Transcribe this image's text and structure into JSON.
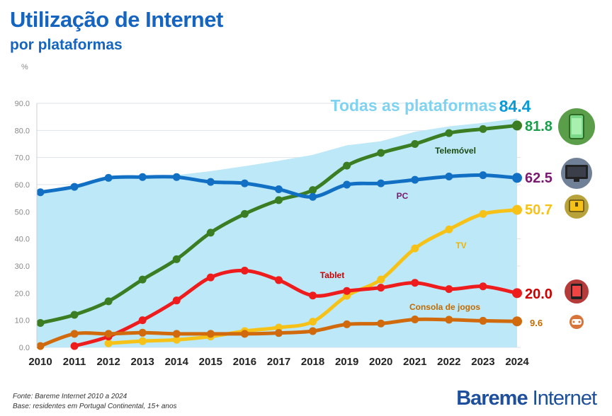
{
  "title": "Utilização de Internet",
  "subtitle": "por plataformas",
  "footer": {
    "source": "Fonte: Bareme Internet 2010 a 2024",
    "base": "Base: residentes em Portugal Continental, 15+ anos"
  },
  "brand": {
    "part1": "Bareme",
    "part2": "Internet"
  },
  "chart_data": {
    "type": "line",
    "title": "Utilização de Internet por plataformas",
    "ylabel": "%",
    "ylim": [
      0,
      90
    ],
    "yticks": [
      "0.0",
      "10.0",
      "20.0",
      "30.0",
      "40.0",
      "50.0",
      "60.0",
      "70.0",
      "80.0",
      "90.0"
    ],
    "x": [
      "2010",
      "2011",
      "2012",
      "2013",
      "2014",
      "2015",
      "2016",
      "2017",
      "2018",
      "2019",
      "2020",
      "2021",
      "2022",
      "2023",
      "2024"
    ],
    "area": {
      "name": "Todas as plataformas",
      "final_label": "84.4",
      "color": "#bde8f7",
      "label_color": "#7fd3f0",
      "values": [
        57.2,
        59.2,
        62.5,
        62.8,
        63.5,
        65.0,
        66.8,
        68.8,
        71.0,
        74.5,
        76.0,
        79.5,
        81.5,
        82.8,
        84.4
      ]
    },
    "series": [
      {
        "name": "Telemóvel",
        "final_label": "81.8",
        "color": "#3a7d22",
        "label_color": "#1a9e4a",
        "values": [
          9.0,
          12.0,
          17.0,
          25.0,
          32.5,
          42.3,
          49.2,
          54.3,
          58.0,
          67.0,
          71.7,
          75.0,
          79.0,
          80.5,
          81.8
        ]
      },
      {
        "name": "PC",
        "final_label": "62.5",
        "color": "#1270c4",
        "label_color": "#7a1a6e",
        "values": [
          57.2,
          59.2,
          62.5,
          62.8,
          62.8,
          61.0,
          60.5,
          58.3,
          55.5,
          60.0,
          60.5,
          61.8,
          63.0,
          63.5,
          62.5
        ]
      },
      {
        "name": "TV",
        "final_label": "50.7",
        "color": "#f6c218",
        "label_color": "#f6c218",
        "values": [
          null,
          null,
          1.5,
          2.3,
          2.8,
          4.0,
          6.0,
          7.3,
          9.5,
          19.0,
          25.0,
          36.5,
          43.5,
          49.2,
          50.7
        ]
      },
      {
        "name": "Tablet",
        "final_label": "20.0",
        "color": "#ee1c1c",
        "label_color": "#cc0000",
        "values": [
          null,
          0.5,
          4.0,
          10.0,
          17.3,
          25.8,
          28.3,
          24.8,
          19.1,
          20.8,
          22.0,
          23.8,
          21.5,
          22.5,
          20.0
        ]
      },
      {
        "name": "Consola de jogos",
        "final_label": "9.6",
        "color": "#d06a0c",
        "label_color": "#c46a00",
        "values": [
          0.5,
          5.0,
          5.0,
          5.4,
          5.0,
          5.0,
          5.0,
          5.3,
          6.0,
          8.5,
          8.8,
          10.3,
          10.2,
          9.8,
          9.6
        ]
      }
    ]
  },
  "icons": [
    "smartphone-icon",
    "computer-monitor-icon",
    "tv-icon",
    "tablet-icon",
    "gamepad-icon"
  ]
}
